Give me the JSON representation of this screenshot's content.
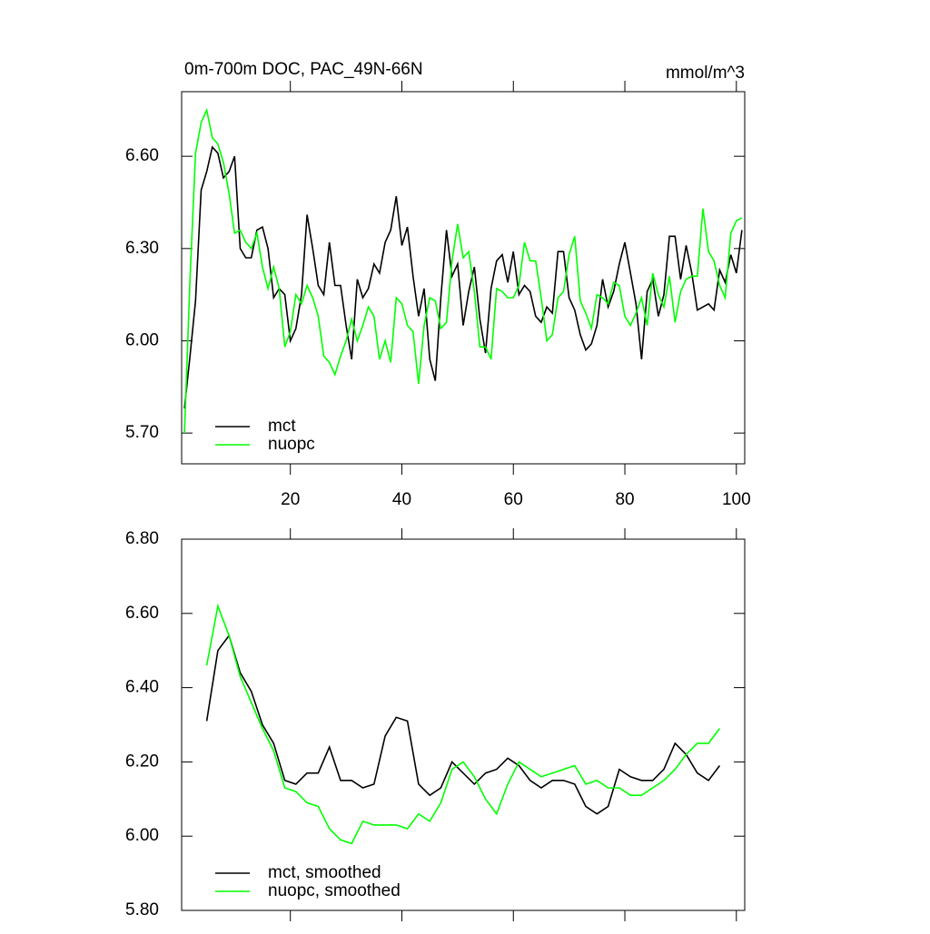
{
  "chart_data": [
    {
      "type": "line",
      "title": "0m-700m DOC, PAC_49N-66N",
      "units": "mmol/m^3",
      "x": [
        1,
        2,
        3,
        4,
        5,
        6,
        7,
        8,
        9,
        10,
        11,
        12,
        13,
        14,
        15,
        16,
        17,
        18,
        19,
        20,
        21,
        22,
        23,
        24,
        25,
        26,
        27,
        28,
        29,
        30,
        31,
        32,
        33,
        34,
        35,
        36,
        37,
        38,
        39,
        40,
        41,
        42,
        43,
        44,
        45,
        46,
        47,
        48,
        49,
        50,
        51,
        52,
        53,
        54,
        55,
        56,
        57,
        58,
        59,
        60,
        61,
        62,
        63,
        64,
        65,
        66,
        67,
        68,
        69,
        70,
        71,
        72,
        73,
        74,
        75,
        76,
        77,
        78,
        79,
        80,
        81,
        82,
        83,
        84,
        85,
        86,
        87,
        88,
        89,
        90,
        91,
        92,
        93,
        94,
        95,
        96,
        97,
        98,
        99,
        100,
        101
      ],
      "series": [
        {
          "name": "mct",
          "color": "#000000",
          "values": [
            5.78,
            5.95,
            6.13,
            6.49,
            6.55,
            6.63,
            6.61,
            6.53,
            6.55,
            6.6,
            6.3,
            6.27,
            6.27,
            6.36,
            6.37,
            6.3,
            6.14,
            6.17,
            6.15,
            6.0,
            6.04,
            6.15,
            6.41,
            6.3,
            6.18,
            6.15,
            6.32,
            6.18,
            6.18,
            6.05,
            5.94,
            6.2,
            6.14,
            6.17,
            6.25,
            6.22,
            6.32,
            6.36,
            6.47,
            6.31,
            6.37,
            6.21,
            6.08,
            6.17,
            5.94,
            5.87,
            6.14,
            6.36,
            6.21,
            6.25,
            6.05,
            6.16,
            6.24,
            6.07,
            5.96,
            6.17,
            6.26,
            6.28,
            6.19,
            6.29,
            6.15,
            6.18,
            6.16,
            6.08,
            6.06,
            6.11,
            6.09,
            6.29,
            6.29,
            6.14,
            6.1,
            6.02,
            5.97,
            5.99,
            6.05,
            6.2,
            6.11,
            6.16,
            6.25,
            6.32,
            6.22,
            6.12,
            5.94,
            6.16,
            6.2,
            6.08,
            6.15,
            6.34,
            6.34,
            6.2,
            6.31,
            6.22,
            6.1,
            6.11,
            6.12,
            6.1,
            6.23,
            6.19,
            6.28,
            6.22,
            6.36
          ]
        },
        {
          "name": "nuopc",
          "color": "#00ff00",
          "values": [
            5.7,
            6.2,
            6.61,
            6.71,
            6.75,
            6.66,
            6.64,
            6.58,
            6.48,
            6.35,
            6.36,
            6.32,
            6.3,
            6.35,
            6.24,
            6.17,
            6.24,
            6.17,
            5.98,
            6.03,
            6.15,
            6.12,
            6.18,
            6.14,
            6.08,
            5.95,
            5.93,
            5.89,
            5.95,
            6.0,
            6.07,
            6.0,
            6.05,
            6.11,
            6.08,
            5.94,
            6.0,
            5.93,
            6.14,
            6.12,
            6.05,
            6.03,
            5.86,
            6.05,
            6.14,
            6.13,
            6.04,
            6.06,
            6.26,
            6.38,
            6.27,
            6.29,
            6.16,
            5.98,
            5.98,
            5.94,
            6.17,
            6.16,
            6.14,
            6.14,
            6.18,
            6.32,
            6.26,
            6.26,
            6.14,
            6.0,
            6.02,
            6.14,
            6.16,
            6.28,
            6.34,
            6.13,
            6.09,
            6.04,
            6.15,
            6.14,
            6.12,
            6.19,
            6.18,
            6.08,
            6.05,
            6.09,
            6.14,
            6.05,
            6.22,
            6.15,
            6.11,
            6.21,
            6.06,
            6.16,
            6.2,
            6.21,
            6.21,
            6.43,
            6.29,
            6.26,
            6.18,
            6.14,
            6.35,
            6.39,
            6.4
          ]
        }
      ],
      "xlim": [
        0.5,
        101.5
      ],
      "xticks": [
        20,
        40,
        60,
        80,
        100
      ],
      "ylim": [
        5.6,
        6.81
      ],
      "yticks": [
        {
          "value": 5.7,
          "label": "5.70"
        },
        {
          "value": 6.0,
          "label": "6.00"
        },
        {
          "value": 6.3,
          "label": "6.30"
        },
        {
          "value": 6.6,
          "label": "6.60"
        }
      ],
      "legend": "lower left"
    },
    {
      "type": "line",
      "x": [
        5,
        7,
        9,
        11,
        13,
        15,
        17,
        19,
        21,
        23,
        25,
        27,
        29,
        31,
        33,
        35,
        37,
        39,
        41,
        43,
        45,
        47,
        49,
        51,
        53,
        55,
        57,
        59,
        61,
        63,
        65,
        67,
        69,
        71,
        73,
        75,
        77,
        79,
        81,
        83,
        85,
        87,
        89,
        91,
        93,
        95,
        97
      ],
      "series": [
        {
          "name": "mct, smoothed",
          "color": "#000000",
          "values": [
            6.31,
            6.5,
            6.54,
            6.44,
            6.39,
            6.3,
            6.25,
            6.15,
            6.14,
            6.17,
            6.17,
            6.24,
            6.15,
            6.15,
            6.13,
            6.14,
            6.27,
            6.32,
            6.31,
            6.14,
            6.11,
            6.13,
            6.2,
            6.17,
            6.14,
            6.17,
            6.18,
            6.21,
            6.19,
            6.15,
            6.13,
            6.15,
            6.15,
            6.14,
            6.08,
            6.06,
            6.08,
            6.18,
            6.16,
            6.15,
            6.15,
            6.18,
            6.25,
            6.22,
            6.17,
            6.15,
            6.19
          ]
        },
        {
          "name": "nuopc, smoothed",
          "color": "#00ff00",
          "values": [
            6.46,
            6.62,
            6.54,
            6.43,
            6.36,
            6.29,
            6.23,
            6.13,
            6.12,
            6.09,
            6.08,
            6.02,
            5.99,
            5.98,
            6.04,
            6.03,
            6.03,
            6.03,
            6.02,
            6.06,
            6.04,
            6.09,
            6.18,
            6.2,
            6.16,
            6.1,
            6.06,
            6.14,
            6.2,
            6.18,
            6.16,
            6.17,
            6.18,
            6.19,
            6.14,
            6.15,
            6.13,
            6.13,
            6.11,
            6.11,
            6.13,
            6.15,
            6.18,
            6.22,
            6.25,
            6.25,
            6.29
          ]
        }
      ],
      "xlim": [
        0.5,
        101.5
      ],
      "xticks": [
        20,
        40,
        60,
        80,
        100
      ],
      "ylim": [
        5.8,
        6.8
      ],
      "yticks": [
        {
          "value": 5.8,
          "label": "5.80"
        },
        {
          "value": 6.0,
          "label": "6.00"
        },
        {
          "value": 6.2,
          "label": "6.20"
        },
        {
          "value": 6.4,
          "label": "6.40"
        },
        {
          "value": 6.6,
          "label": "6.60"
        },
        {
          "value": 6.8,
          "label": "6.80"
        }
      ],
      "legend": "lower left"
    }
  ]
}
